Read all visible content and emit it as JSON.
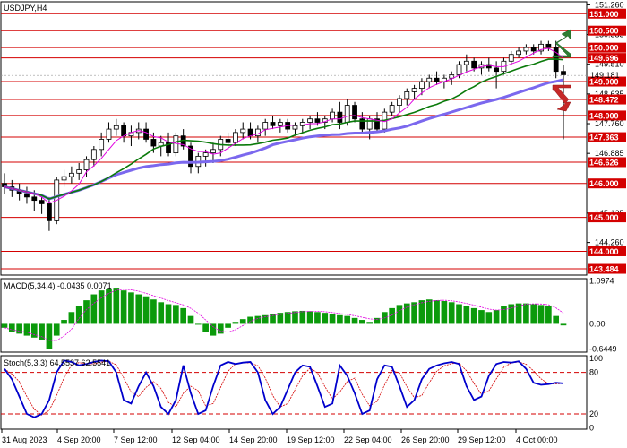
{
  "chart_data": {
    "type": "candlestick",
    "symbol": "USDJPY,H4",
    "price_axis": {
      "range": [
        143.3,
        151.35
      ],
      "ticks": [
        {
          "value": 151.26,
          "label": "151.260"
        },
        {
          "value": 150.385,
          "label": "150.385"
        },
        {
          "value": 149.51,
          "label": "149.510"
        },
        {
          "value": 148.635,
          "label": "148.635"
        },
        {
          "value": 147.76,
          "label": "147.760"
        },
        {
          "value": 146.885,
          "label": "146.885"
        },
        {
          "value": 145.125,
          "label": "145.125"
        },
        {
          "value": 144.26,
          "label": "144.260"
        }
      ],
      "current_price": {
        "value": 149.181,
        "label": "149.181"
      }
    },
    "levels": [
      {
        "value": 151.0,
        "label": "151.000",
        "color": "#d40000"
      },
      {
        "value": 150.5,
        "label": "150.500",
        "color": "#d40000"
      },
      {
        "value": 150.0,
        "label": "150.000",
        "color": "#d40000"
      },
      {
        "value": 149.696,
        "label": "149.696",
        "color": "#d40000"
      },
      {
        "value": 149.0,
        "label": "149.000",
        "color": "#d40000"
      },
      {
        "value": 148.472,
        "label": "148.472",
        "color": "#d40000"
      },
      {
        "value": 148.0,
        "label": "148.000",
        "color": "#d40000"
      },
      {
        "value": 147.363,
        "label": "147.363",
        "color": "#d40000"
      },
      {
        "value": 146.626,
        "label": "146.626",
        "color": "#d40000"
      },
      {
        "value": 146.0,
        "label": "146.000",
        "color": "#d40000"
      },
      {
        "value": 145.0,
        "label": "145.000",
        "color": "#d40000"
      },
      {
        "value": 144.0,
        "label": "144.000",
        "color": "#d40000"
      },
      {
        "value": 143.484,
        "label": "143.484",
        "color": "#d40000"
      }
    ],
    "x_labels": [
      "31 Aug 2023",
      "4 Sep 20:00",
      "7 Sep 12:00",
      "12 Sep 04:00",
      "14 Sep 20:00",
      "19 Sep 12:00",
      "22 Sep 04:00",
      "26 Sep 20:00",
      "29 Sep 12:00",
      "4 Oct 00:00"
    ],
    "candles": [
      [
        146.0,
        146.3,
        145.7,
        145.9
      ],
      [
        145.9,
        146.1,
        145.6,
        145.8
      ],
      [
        145.8,
        146.0,
        145.5,
        145.7
      ],
      [
        145.7,
        145.9,
        145.4,
        145.6
      ],
      [
        145.6,
        145.8,
        145.2,
        145.5
      ],
      [
        145.5,
        145.7,
        145.1,
        145.4
      ],
      [
        145.4,
        145.6,
        144.6,
        144.9
      ],
      [
        144.9,
        146.2,
        144.8,
        146.1
      ],
      [
        146.1,
        146.4,
        145.9,
        146.2
      ],
      [
        146.2,
        146.5,
        146.0,
        146.3
      ],
      [
        146.3,
        146.6,
        146.1,
        146.4
      ],
      [
        146.4,
        146.8,
        146.2,
        146.7
      ],
      [
        146.7,
        147.1,
        146.5,
        147.0
      ],
      [
        147.0,
        147.5,
        146.8,
        147.3
      ],
      [
        147.3,
        147.8,
        147.2,
        147.6
      ],
      [
        147.6,
        147.9,
        147.4,
        147.7
      ],
      [
        147.7,
        147.8,
        147.2,
        147.4
      ],
      [
        147.4,
        147.7,
        147.1,
        147.5
      ],
      [
        147.5,
        147.8,
        147.3,
        147.6
      ],
      [
        147.6,
        147.8,
        147.2,
        147.3
      ],
      [
        147.3,
        147.5,
        146.9,
        147.1
      ],
      [
        147.1,
        147.4,
        146.8,
        147.2
      ],
      [
        147.2,
        147.5,
        146.8,
        146.9
      ],
      [
        146.9,
        147.5,
        146.8,
        147.4
      ],
      [
        147.4,
        147.6,
        147.0,
        147.1
      ],
      [
        147.1,
        147.2,
        146.3,
        146.5
      ],
      [
        146.5,
        146.9,
        146.3,
        146.8
      ],
      [
        146.8,
        147.0,
        146.5,
        146.9
      ],
      [
        146.9,
        147.2,
        146.6,
        147.0
      ],
      [
        147.0,
        147.4,
        146.8,
        147.3
      ],
      [
        147.3,
        147.5,
        147.0,
        147.2
      ],
      [
        147.2,
        147.6,
        147.1,
        147.5
      ],
      [
        147.5,
        147.8,
        147.3,
        147.6
      ],
      [
        147.6,
        147.8,
        147.3,
        147.4
      ],
      [
        147.4,
        147.7,
        147.2,
        147.6
      ],
      [
        147.6,
        147.9,
        147.4,
        147.8
      ],
      [
        147.8,
        148.0,
        147.6,
        147.7
      ],
      [
        147.7,
        147.9,
        147.5,
        147.8
      ],
      [
        147.8,
        147.9,
        147.5,
        147.6
      ],
      [
        147.6,
        147.8,
        147.4,
        147.7
      ],
      [
        147.7,
        147.9,
        147.5,
        147.8
      ],
      [
        147.8,
        148.0,
        147.6,
        147.9
      ],
      [
        147.9,
        148.1,
        147.7,
        147.8
      ],
      [
        147.8,
        148.0,
        147.6,
        147.9
      ],
      [
        147.9,
        148.2,
        147.8,
        148.1
      ],
      [
        148.1,
        148.4,
        147.6,
        147.8
      ],
      [
        147.8,
        148.5,
        147.7,
        148.3
      ],
      [
        148.3,
        148.4,
        147.8,
        147.9
      ],
      [
        147.9,
        148.1,
        147.5,
        147.6
      ],
      [
        147.6,
        148.0,
        147.3,
        147.9
      ],
      [
        147.9,
        148.1,
        147.5,
        147.6
      ],
      [
        147.6,
        148.2,
        147.5,
        148.1
      ],
      [
        148.1,
        148.4,
        148.0,
        148.3
      ],
      [
        148.3,
        148.6,
        148.1,
        148.5
      ],
      [
        148.5,
        148.8,
        148.3,
        148.7
      ],
      [
        148.7,
        148.9,
        148.5,
        148.8
      ],
      [
        148.8,
        149.1,
        148.6,
        149.0
      ],
      [
        149.0,
        149.2,
        148.8,
        149.1
      ],
      [
        149.1,
        149.3,
        148.9,
        149.0
      ],
      [
        149.0,
        149.2,
        148.8,
        149.1
      ],
      [
        149.1,
        149.3,
        148.9,
        149.2
      ],
      [
        149.2,
        149.6,
        149.1,
        149.5
      ],
      [
        149.5,
        149.8,
        149.3,
        149.6
      ],
      [
        149.6,
        149.7,
        149.3,
        149.4
      ],
      [
        149.4,
        149.6,
        149.2,
        149.5
      ],
      [
        149.5,
        149.7,
        149.3,
        149.4
      ],
      [
        149.4,
        149.6,
        148.8,
        149.3
      ],
      [
        149.3,
        149.7,
        149.2,
        149.6
      ],
      [
        149.6,
        149.9,
        149.5,
        149.8
      ],
      [
        149.8,
        150.0,
        149.7,
        149.9
      ],
      [
        149.9,
        150.1,
        149.8,
        150.0
      ],
      [
        150.0,
        150.1,
        149.8,
        149.9
      ],
      [
        149.9,
        150.2,
        149.8,
        150.1
      ],
      [
        150.1,
        150.2,
        149.9,
        150.0
      ],
      [
        150.0,
        150.2,
        149.1,
        149.3
      ],
      [
        149.3,
        149.5,
        147.3,
        149.2
      ]
    ],
    "indicators": {
      "ma_fast_color": "#e000e0",
      "ma_mid_color": "#0a7a0a",
      "ma_slow_color": "#7b68ee"
    },
    "macd": {
      "label": "MACD(5,34,4) -0.0435 0.0071",
      "ticks": [
        {
          "value": 1.0974,
          "label": "1.0974"
        },
        {
          "value": 0.0,
          "label": "0.00"
        },
        {
          "value": -0.6449,
          "label": "-0.6449"
        }
      ],
      "range": [
        -0.72,
        1.15
      ],
      "bar_color": "#0b9a0b",
      "signal_color": "#e000e0",
      "values": [
        -0.1,
        -0.2,
        -0.25,
        -0.3,
        -0.35,
        -0.4,
        -0.64,
        -0.3,
        0.1,
        0.3,
        0.45,
        0.6,
        0.75,
        0.85,
        0.9,
        0.92,
        0.85,
        0.8,
        0.75,
        0.7,
        0.62,
        0.55,
        0.5,
        0.48,
        0.4,
        0.2,
        0.0,
        -0.2,
        -0.3,
        -0.25,
        -0.1,
        0.05,
        0.12,
        0.18,
        0.2,
        0.22,
        0.25,
        0.28,
        0.3,
        0.32,
        0.33,
        0.32,
        0.3,
        0.28,
        0.25,
        0.22,
        0.2,
        0.15,
        0.1,
        0.05,
        0.15,
        0.3,
        0.4,
        0.48,
        0.52,
        0.55,
        0.6,
        0.62,
        0.6,
        0.58,
        0.55,
        0.5,
        0.45,
        0.4,
        0.35,
        0.3,
        0.35,
        0.45,
        0.5,
        0.52,
        0.52,
        0.5,
        0.48,
        0.45,
        0.2,
        -0.04
      ]
    },
    "stoch": {
      "label": "Stoch(5,3,3) 64.5537 62.5541",
      "ticks": [
        {
          "value": 100,
          "label": "100"
        },
        {
          "value": 80,
          "label": "80"
        },
        {
          "value": 20,
          "label": "20"
        },
        {
          "value": 0,
          "label": "0"
        }
      ],
      "range": [
        -2,
        104
      ],
      "main_color": "#0000cc",
      "signal_color": "#d40000",
      "levels": [
        80,
        20
      ],
      "values": [
        85,
        70,
        45,
        20,
        15,
        20,
        40,
        80,
        97,
        95,
        90,
        92,
        95,
        97,
        96,
        80,
        40,
        35,
        60,
        80,
        60,
        30,
        20,
        40,
        90,
        50,
        20,
        25,
        60,
        90,
        95,
        92,
        94,
        95,
        80,
        40,
        20,
        30,
        55,
        80,
        90,
        88,
        60,
        30,
        35,
        90,
        75,
        50,
        20,
        25,
        70,
        90,
        88,
        60,
        30,
        40,
        70,
        85,
        90,
        93,
        95,
        92,
        60,
        40,
        45,
        75,
        92,
        95,
        94,
        96,
        85,
        65,
        62,
        63,
        65,
        64
      ]
    }
  }
}
